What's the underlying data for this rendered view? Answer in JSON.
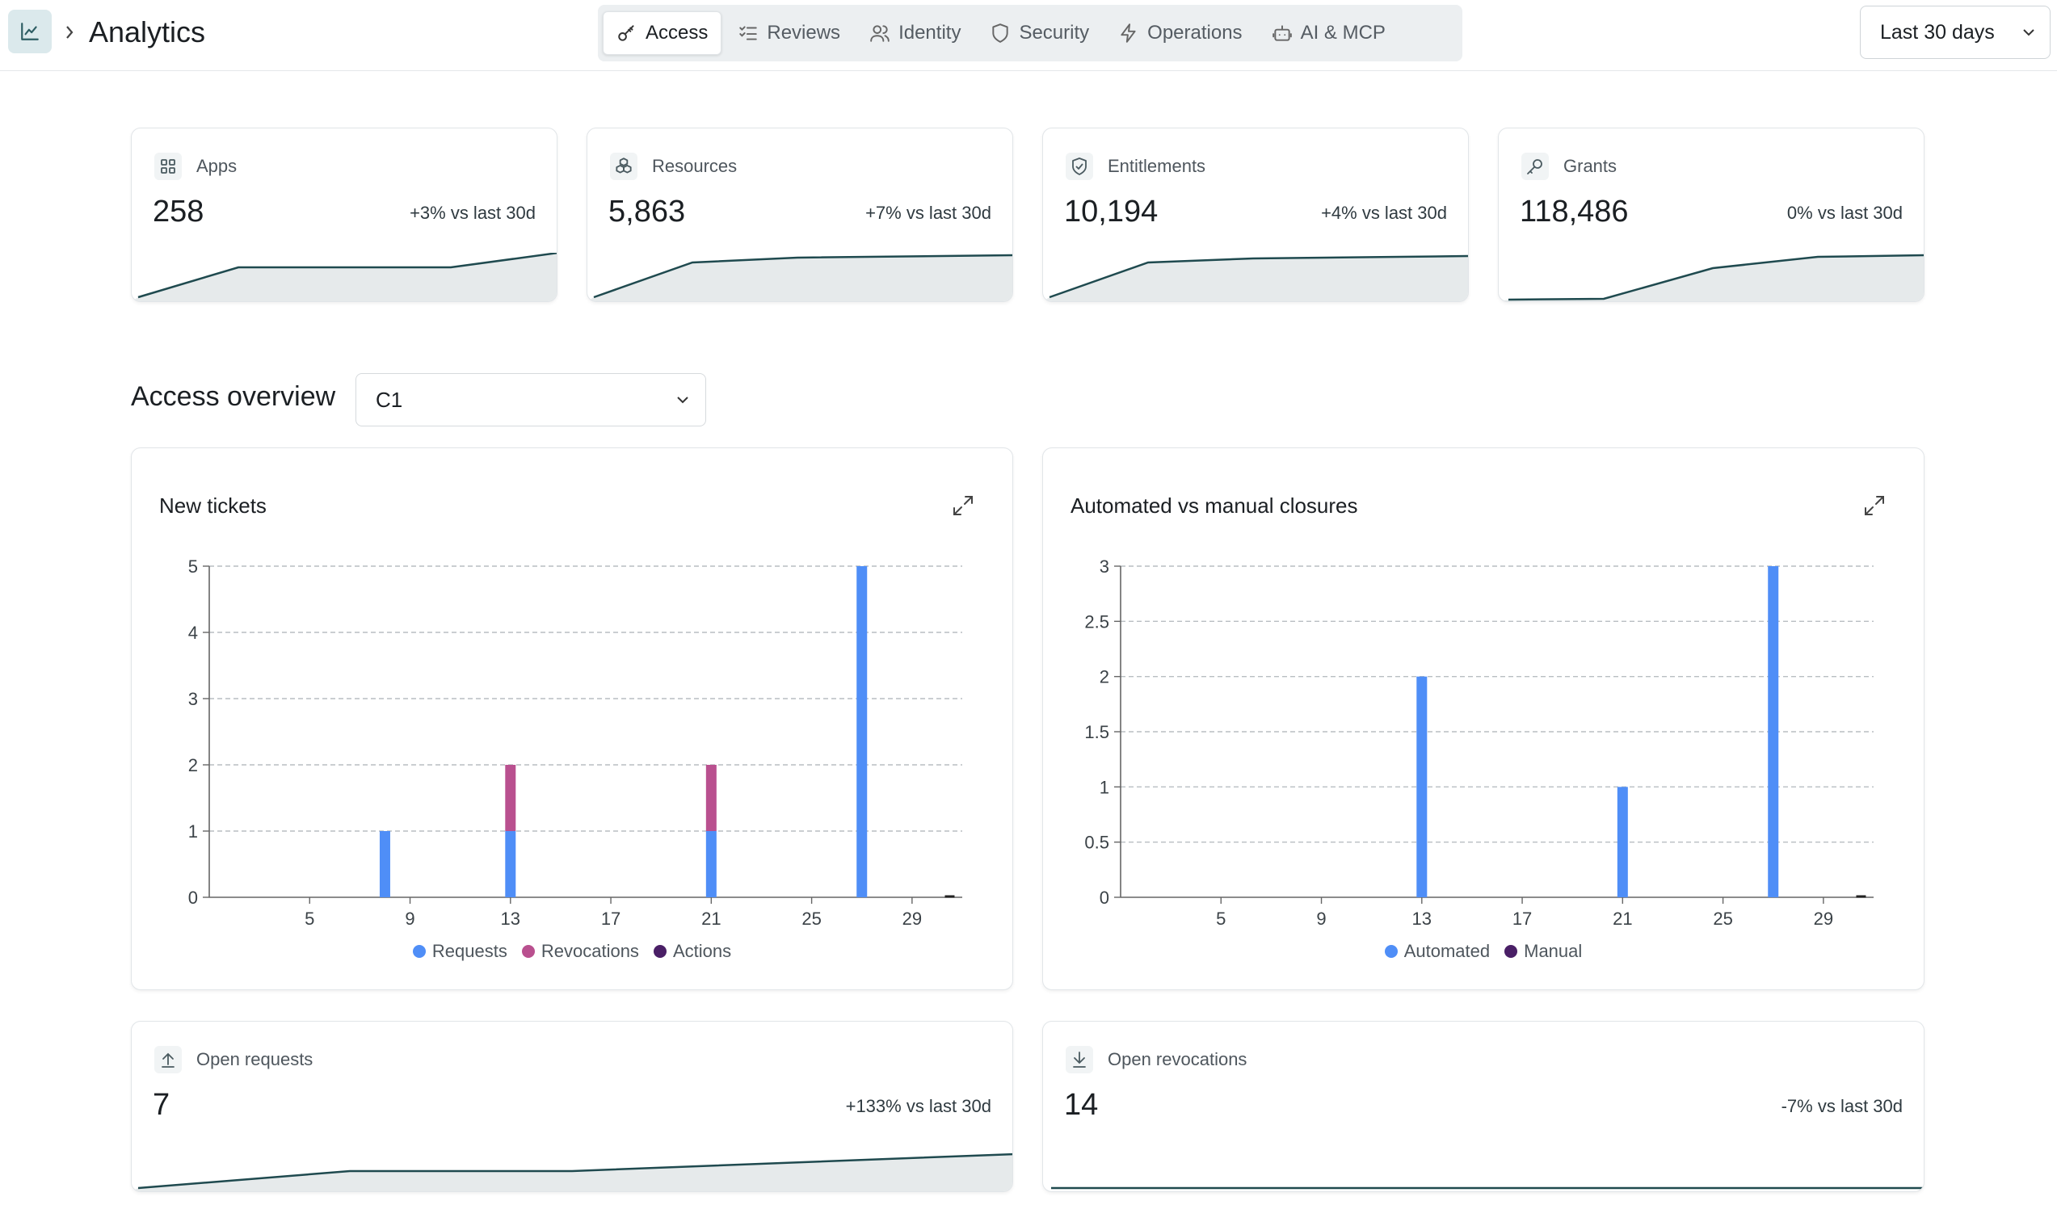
{
  "header": {
    "title": "Analytics",
    "tabs": [
      {
        "label": "Access",
        "active": true
      },
      {
        "label": "Reviews",
        "active": false
      },
      {
        "label": "Identity",
        "active": false
      },
      {
        "label": "Security",
        "active": false
      },
      {
        "label": "Operations",
        "active": false
      },
      {
        "label": "AI & MCP",
        "active": false
      }
    ],
    "date_range": "Last 30 days"
  },
  "stats": [
    {
      "label": "Apps",
      "icon": "grid-icon",
      "value": "258",
      "delta": "+3% vs last 30d"
    },
    {
      "label": "Resources",
      "icon": "cubes-icon",
      "value": "5,863",
      "delta": "+7% vs last 30d"
    },
    {
      "label": "Entitlements",
      "icon": "shield-check-icon",
      "value": "10,194",
      "delta": "+4% vs last 30d"
    },
    {
      "label": "Grants",
      "icon": "key-icon",
      "value": "118,486",
      "delta": "0% vs last 30d"
    }
  ],
  "section": {
    "title": "Access overview",
    "filter_value": "C1"
  },
  "charts": {
    "new_tickets": {
      "title": "New tickets"
    },
    "closures": {
      "title": "Automated vs manual closures"
    }
  },
  "open_cards": [
    {
      "label": "Open requests",
      "icon": "arrow-up-icon",
      "value": "7",
      "delta": "+133% vs last 30d"
    },
    {
      "label": "Open revocations",
      "icon": "arrow-down-icon",
      "value": "14",
      "delta": "-7% vs last 30d"
    }
  ],
  "colors": {
    "requests": "#4f8ef7",
    "revocations": "#b9508f",
    "actions": "#4a1f66",
    "automated": "#4f8ef7",
    "manual": "#4a1f66",
    "spark_line": "#1f4a4f",
    "spark_fill": "#e6eaeb"
  },
  "chart_data": [
    {
      "type": "bar",
      "title": "New tickets",
      "xlabel": "",
      "ylabel": "",
      "x_ticks": [
        5,
        9,
        13,
        17,
        21,
        25,
        29
      ],
      "y_ticks": [
        0,
        1,
        2,
        3,
        4,
        5
      ],
      "ylim": [
        0,
        5
      ],
      "stacked": true,
      "grid": true,
      "legend_position": "bottom",
      "series": [
        {
          "name": "Requests",
          "points": [
            {
              "x": 8,
              "y": 1
            },
            {
              "x": 13,
              "y": 1
            },
            {
              "x": 21,
              "y": 1
            },
            {
              "x": 27,
              "y": 5
            }
          ]
        },
        {
          "name": "Revocations",
          "points": [
            {
              "x": 13,
              "y": 1
            },
            {
              "x": 21,
              "y": 1
            }
          ]
        },
        {
          "name": "Actions",
          "points": []
        }
      ]
    },
    {
      "type": "bar",
      "title": "Automated vs manual closures",
      "xlabel": "",
      "ylabel": "",
      "x_ticks": [
        5,
        9,
        13,
        17,
        21,
        25,
        29
      ],
      "y_ticks": [
        0,
        0.5,
        1,
        1.5,
        2,
        2.5,
        3
      ],
      "ylim": [
        0,
        3
      ],
      "stacked": true,
      "grid": true,
      "legend_position": "bottom",
      "series": [
        {
          "name": "Automated",
          "points": [
            {
              "x": 13,
              "y": 2
            },
            {
              "x": 21,
              "y": 1
            },
            {
              "x": 27,
              "y": 3
            }
          ]
        },
        {
          "name": "Manual",
          "points": []
        }
      ]
    }
  ]
}
